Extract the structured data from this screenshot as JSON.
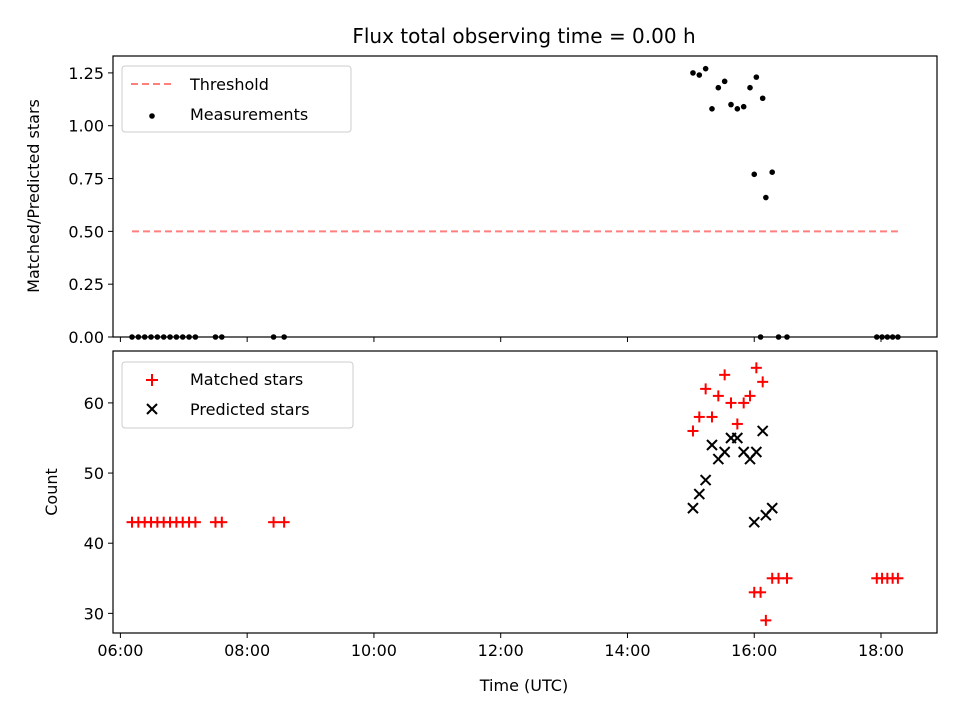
{
  "chart_data": [
    {
      "type": "scatter",
      "title": "Flux total observing time = 0.00 h",
      "xlabel": "",
      "ylabel": "Matched/Predicted stars",
      "xlim": [
        "05:53",
        "18:53"
      ],
      "ylim": [
        0,
        1.33
      ],
      "x_ticks": [
        "06:00",
        "08:00",
        "10:00",
        "12:00",
        "14:00",
        "16:00",
        "18:00"
      ],
      "y_ticks": [
        "0.00",
        "0.25",
        "0.50",
        "0.75",
        "1.00",
        "1.25"
      ],
      "legend_position": "top-left",
      "series": [
        {
          "name": "Threshold",
          "kind": "dashed-line",
          "color": "#ff7f7f",
          "points": [
            {
              "x": "06:11",
              "y": 0.5
            },
            {
              "x": "18:16",
              "y": 0.5
            }
          ]
        },
        {
          "name": "Measurements",
          "kind": "points",
          "color": "#000000",
          "points": [
            {
              "x": "06:11",
              "y": 0
            },
            {
              "x": "06:17",
              "y": 0
            },
            {
              "x": "06:23",
              "y": 0
            },
            {
              "x": "06:29",
              "y": 0
            },
            {
              "x": "06:35",
              "y": 0
            },
            {
              "x": "06:41",
              "y": 0
            },
            {
              "x": "06:47",
              "y": 0
            },
            {
              "x": "06:53",
              "y": 0
            },
            {
              "x": "06:59",
              "y": 0
            },
            {
              "x": "07:05",
              "y": 0
            },
            {
              "x": "07:11",
              "y": 0
            },
            {
              "x": "07:30",
              "y": 0
            },
            {
              "x": "07:36",
              "y": 0
            },
            {
              "x": "08:25",
              "y": 0
            },
            {
              "x": "08:35",
              "y": 0
            },
            {
              "x": "15:02",
              "y": 1.25
            },
            {
              "x": "15:08",
              "y": 1.24
            },
            {
              "x": "15:14",
              "y": 1.27
            },
            {
              "x": "15:20",
              "y": 1.08
            },
            {
              "x": "15:26",
              "y": 1.18
            },
            {
              "x": "15:32",
              "y": 1.21
            },
            {
              "x": "15:38",
              "y": 1.1
            },
            {
              "x": "15:44",
              "y": 1.08
            },
            {
              "x": "15:50",
              "y": 1.09
            },
            {
              "x": "15:56",
              "y": 1.18
            },
            {
              "x": "16:02",
              "y": 1.23
            },
            {
              "x": "16:08",
              "y": 1.13
            },
            {
              "x": "16:00",
              "y": 0.77
            },
            {
              "x": "16:06",
              "y": 0
            },
            {
              "x": "16:11",
              "y": 0.66
            },
            {
              "x": "16:17",
              "y": 0.78
            },
            {
              "x": "16:23",
              "y": 0
            },
            {
              "x": "16:31",
              "y": 0
            },
            {
              "x": "17:56",
              "y": 0
            },
            {
              "x": "18:01",
              "y": 0
            },
            {
              "x": "18:06",
              "y": 0
            },
            {
              "x": "18:11",
              "y": 0
            },
            {
              "x": "18:16",
              "y": 0
            }
          ]
        }
      ]
    },
    {
      "type": "scatter",
      "title": "",
      "xlabel": "Time (UTC)",
      "ylabel": "Count",
      "xlim": [
        "05:53",
        "18:53"
      ],
      "ylim": [
        27.2,
        67.4
      ],
      "x_ticks": [
        "06:00",
        "08:00",
        "10:00",
        "12:00",
        "14:00",
        "16:00",
        "18:00"
      ],
      "y_ticks": [
        "30",
        "40",
        "50",
        "60"
      ],
      "legend_position": "top-left",
      "series": [
        {
          "name": "Matched stars",
          "kind": "plus",
          "color": "#ff0000",
          "points": [
            {
              "x": "06:11",
              "y": 43
            },
            {
              "x": "06:17",
              "y": 43
            },
            {
              "x": "06:23",
              "y": 43
            },
            {
              "x": "06:29",
              "y": 43
            },
            {
              "x": "06:35",
              "y": 43
            },
            {
              "x": "06:41",
              "y": 43
            },
            {
              "x": "06:47",
              "y": 43
            },
            {
              "x": "06:53",
              "y": 43
            },
            {
              "x": "06:59",
              "y": 43
            },
            {
              "x": "07:05",
              "y": 43
            },
            {
              "x": "07:11",
              "y": 43
            },
            {
              "x": "07:30",
              "y": 43
            },
            {
              "x": "07:36",
              "y": 43
            },
            {
              "x": "08:25",
              "y": 43
            },
            {
              "x": "08:35",
              "y": 43
            },
            {
              "x": "15:02",
              "y": 56
            },
            {
              "x": "15:08",
              "y": 58
            },
            {
              "x": "15:14",
              "y": 62
            },
            {
              "x": "15:20",
              "y": 58
            },
            {
              "x": "15:26",
              "y": 61
            },
            {
              "x": "15:32",
              "y": 64
            },
            {
              "x": "15:38",
              "y": 60
            },
            {
              "x": "15:44",
              "y": 57
            },
            {
              "x": "15:50",
              "y": 60
            },
            {
              "x": "15:56",
              "y": 61
            },
            {
              "x": "16:02",
              "y": 65
            },
            {
              "x": "16:08",
              "y": 63
            },
            {
              "x": "16:00",
              "y": 33
            },
            {
              "x": "16:06",
              "y": 33
            },
            {
              "x": "16:11",
              "y": 29
            },
            {
              "x": "16:17",
              "y": 35
            },
            {
              "x": "16:23",
              "y": 35
            },
            {
              "x": "16:31",
              "y": 35
            },
            {
              "x": "17:56",
              "y": 35
            },
            {
              "x": "18:01",
              "y": 35
            },
            {
              "x": "18:06",
              "y": 35
            },
            {
              "x": "18:11",
              "y": 35
            },
            {
              "x": "18:16",
              "y": 35
            }
          ]
        },
        {
          "name": "Predicted stars",
          "kind": "cross",
          "color": "#000000",
          "points": [
            {
              "x": "15:02",
              "y": 45
            },
            {
              "x": "15:08",
              "y": 47
            },
            {
              "x": "15:14",
              "y": 49
            },
            {
              "x": "15:20",
              "y": 54
            },
            {
              "x": "15:26",
              "y": 52
            },
            {
              "x": "15:32",
              "y": 53
            },
            {
              "x": "15:38",
              "y": 55
            },
            {
              "x": "15:44",
              "y": 55
            },
            {
              "x": "15:50",
              "y": 53
            },
            {
              "x": "15:56",
              "y": 52
            },
            {
              "x": "16:02",
              "y": 53
            },
            {
              "x": "16:08",
              "y": 56
            },
            {
              "x": "16:00",
              "y": 43
            },
            {
              "x": "16:11",
              "y": 44
            },
            {
              "x": "16:17",
              "y": 45
            }
          ]
        }
      ]
    }
  ]
}
